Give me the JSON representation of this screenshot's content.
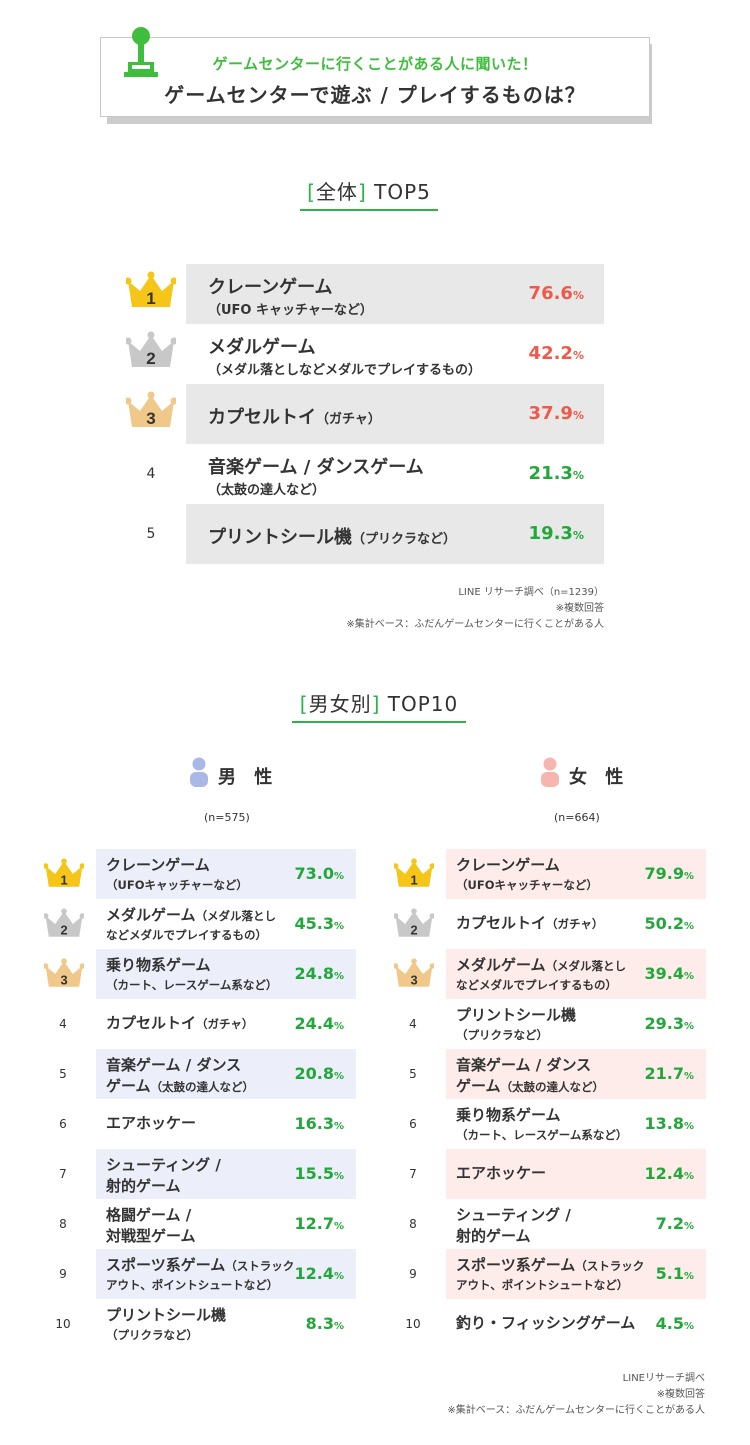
{
  "header": {
    "subtitle": "ゲームセンターに行くことがある人に聞いた！",
    "title": "ゲームセンターで遊ぶ / プレイするものは？"
  },
  "overall": {
    "title_bracket": "全体",
    "title_rest": "TOP5",
    "items": [
      {
        "rank": "1",
        "name": "クレーンゲーム",
        "note": "",
        "sub": "（UFO キャッチャーなど）",
        "value": "76.6",
        "color": "#f0594a"
      },
      {
        "rank": "2",
        "name": "メダルゲーム",
        "note": "",
        "sub": "（メダル落としなどメダルでプレイするもの）",
        "value": "42.2",
        "color": "#f0594a"
      },
      {
        "rank": "3",
        "name": "カプセルトイ",
        "note": "（ガチャ）",
        "sub": "",
        "value": "37.9",
        "color": "#f0594a"
      },
      {
        "rank": "4",
        "name": "音楽ゲーム / ダンスゲーム",
        "note": "",
        "sub": "（太鼓の達人など）",
        "value": "21.3",
        "color": "#22a83a"
      },
      {
        "rank": "5",
        "name": "プリントシール機",
        "note": "（プリクラなど）",
        "sub": "",
        "value": "19.3",
        "color": "#22a83a"
      }
    ],
    "pct": "%",
    "source_lines": [
      "LINE リサーチ調べ（n=1239）",
      "※複数回答",
      "※集計ベース：ふだんゲームセンターに行くことがある人"
    ]
  },
  "gender": {
    "title_bracket": "男女別",
    "title_rest": "TOP10",
    "male_label": "男 性",
    "female_label": "女 性",
    "male_n": "(n=575)",
    "female_n": "(n=664)",
    "pct": "%",
    "male": [
      {
        "rank": "1",
        "name": "クレーンゲーム",
        "note": "",
        "sub": "（UFOキャッチャーなど）",
        "value": "73.0"
      },
      {
        "rank": "2",
        "name": "メダルゲーム",
        "note": "（メダル落とし",
        "sub": "などメダルでプレイするもの）",
        "value": "45.3"
      },
      {
        "rank": "3",
        "name": "乗り物系ゲーム",
        "note": "",
        "sub": "（カート、レースゲーム系など）",
        "value": "24.8"
      },
      {
        "rank": "4",
        "name": "カプセルトイ",
        "note": "（ガチャ）",
        "sub": "",
        "value": "24.4"
      },
      {
        "rank": "5",
        "name": "音楽ゲーム / ダンス",
        "note": "",
        "sub": "ゲーム",
        "sub_note": "（太鼓の達人など）",
        "value": "20.8"
      },
      {
        "rank": "6",
        "name": "エアホッケー",
        "note": "",
        "sub": "",
        "value": "16.3"
      },
      {
        "rank": "7",
        "name": "シューティング /",
        "note": "",
        "sub": "射的ゲーム",
        "value": "15.5"
      },
      {
        "rank": "8",
        "name": "格闘ゲーム /",
        "note": "",
        "sub": "対戦型ゲーム",
        "value": "12.7"
      },
      {
        "rank": "9",
        "name": "スポーツ系ゲーム",
        "note": "（ストラック",
        "sub": "アウト、ポイントシュートなど）",
        "value": "12.4"
      },
      {
        "rank": "10",
        "name": "プリントシール機",
        "note": "",
        "sub": "（プリクラなど）",
        "value": "8.3"
      }
    ],
    "female": [
      {
        "rank": "1",
        "name": "クレーンゲーム",
        "note": "",
        "sub": "（UFOキャッチャーなど）",
        "value": "79.9"
      },
      {
        "rank": "2",
        "name": "カプセルトイ",
        "note": "（ガチャ）",
        "sub": "",
        "value": "50.2"
      },
      {
        "rank": "3",
        "name": "メダルゲーム",
        "note": "（メダル落とし",
        "sub": "などメダルでプレイするもの）",
        "value": "39.4"
      },
      {
        "rank": "4",
        "name": "プリントシール機",
        "note": "",
        "sub": "（プリクラなど）",
        "value": "29.3"
      },
      {
        "rank": "5",
        "name": "音楽ゲーム / ダンス",
        "note": "",
        "sub": "ゲーム",
        "sub_note": "（太鼓の達人など）",
        "value": "21.7"
      },
      {
        "rank": "6",
        "name": "乗り物系ゲーム",
        "note": "",
        "sub": "（カート、レースゲーム系など）",
        "value": "13.8"
      },
      {
        "rank": "7",
        "name": "エアホッケー",
        "note": "",
        "sub": "",
        "value": "12.4"
      },
      {
        "rank": "8",
        "name": "シューティング /",
        "note": "",
        "sub": "射的ゲーム",
        "value": "7.2"
      },
      {
        "rank": "9",
        "name": "スポーツ系ゲーム",
        "note": "（ストラック",
        "sub": "アウト、ポイントシュートなど）",
        "value": "5.1"
      },
      {
        "rank": "10",
        "name": "釣り・フィッシングゲーム",
        "note": "",
        "sub": "",
        "value": "4.5"
      }
    ],
    "source_lines": [
      "LINEリサーチ調べ",
      "※複数回答",
      "※集計ベース：ふだんゲームセンターに行くことがある人"
    ]
  },
  "colors": {
    "accent_green": "#2db34a",
    "value_green": "#22a83a",
    "value_red": "#f0594a",
    "gold": "#f5c518",
    "silver": "#c8c8c8",
    "bronze": "#f0c98a",
    "male_icon": "#a9b8e6",
    "female_icon": "#f6b5ae"
  },
  "chart_data": {
    "type": "table",
    "title": "ゲームセンターで遊ぶ / プレイするものは？",
    "tables": [
      {
        "name": "全体 TOP5",
        "categories": [
          "クレーンゲーム",
          "メダルゲーム",
          "カプセルトイ",
          "音楽ゲーム / ダンスゲーム",
          "プリントシール機"
        ],
        "values": [
          76.6,
          42.2,
          37.9,
          21.3,
          19.3
        ]
      },
      {
        "name": "男性",
        "categories": [
          "クレーンゲーム",
          "メダルゲーム",
          "乗り物系ゲーム",
          "カプセルトイ",
          "音楽ゲーム / ダンスゲーム",
          "エアホッケー",
          "シューティング / 射的ゲーム",
          "格闘ゲーム / 対戦型ゲーム",
          "スポーツ系ゲーム",
          "プリントシール機"
        ],
        "values": [
          73.0,
          45.3,
          24.8,
          24.4,
          20.8,
          16.3,
          15.5,
          12.7,
          12.4,
          8.3
        ]
      },
      {
        "name": "女性",
        "categories": [
          "クレーンゲーム",
          "カプセルトイ",
          "メダルゲーム",
          "プリントシール機",
          "音楽ゲーム / ダンスゲーム",
          "乗り物系ゲーム",
          "エアホッケー",
          "シューティング / 射的ゲーム",
          "スポーツ系ゲーム",
          "釣り・フィッシングゲーム"
        ],
        "values": [
          79.9,
          50.2,
          39.4,
          29.3,
          21.7,
          13.8,
          12.4,
          7.2,
          5.1,
          4.5
        ]
      }
    ]
  }
}
